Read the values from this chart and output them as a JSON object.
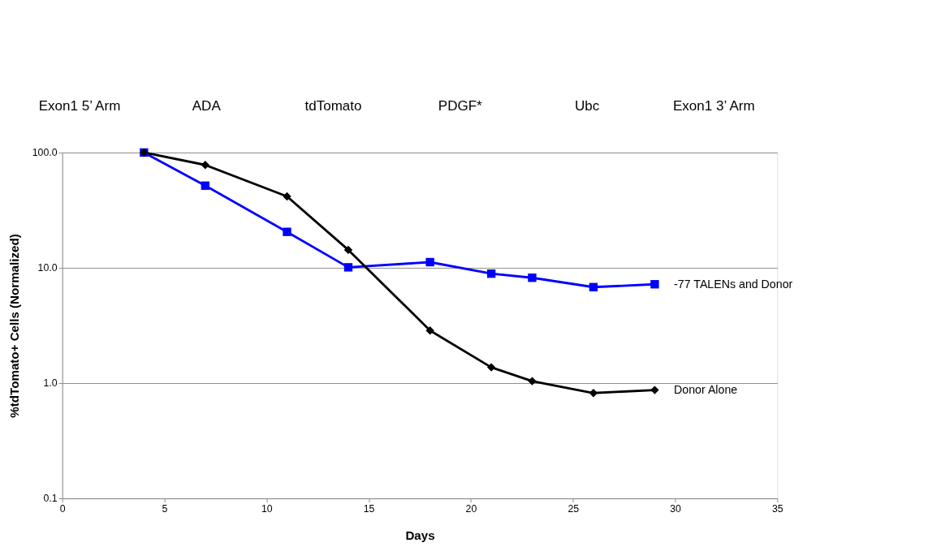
{
  "chart_data": {
    "type": "line",
    "xlabel": "Days",
    "ylabel": "%tdTomato+ Cells (Normalized)",
    "annotations": [
      "Exon1 5’ Arm",
      "ADA",
      "tdTomato",
      "PDGF*",
      "Ubc",
      "Exon1 3’ Arm"
    ],
    "series": [
      {
        "name": "-77 TALENs and Donor",
        "color": "#0000ff",
        "marker": "square",
        "x": [
          4,
          7,
          11,
          14,
          18,
          21,
          23,
          26,
          29
        ],
        "values": [
          100,
          51.6,
          20.5,
          10.1,
          11.2,
          8.9,
          8.2,
          6.8,
          7.2
        ]
      },
      {
        "name": "Donor Alone",
        "color": "#000000",
        "marker": "diamond",
        "x": [
          4,
          7,
          11,
          14,
          18,
          21,
          23,
          26,
          29
        ],
        "values": [
          100,
          78,
          41.6,
          14.3,
          2.86,
          1.37,
          1.04,
          0.82,
          0.87
        ]
      }
    ],
    "xlim": [
      0,
      35
    ],
    "xticks": [
      0,
      5,
      10,
      15,
      20,
      25,
      30,
      35
    ],
    "ylim": [
      0.1,
      100
    ],
    "yticks": [
      {
        "value": 0.1,
        "label": "0.1"
      },
      {
        "value": 1,
        "label": "1.0"
      },
      {
        "value": 10,
        "label": "10.0"
      },
      {
        "value": 100,
        "label": "100.0"
      }
    ],
    "log": "y",
    "grid": "y",
    "legend": false,
    "line_style": "solid"
  }
}
